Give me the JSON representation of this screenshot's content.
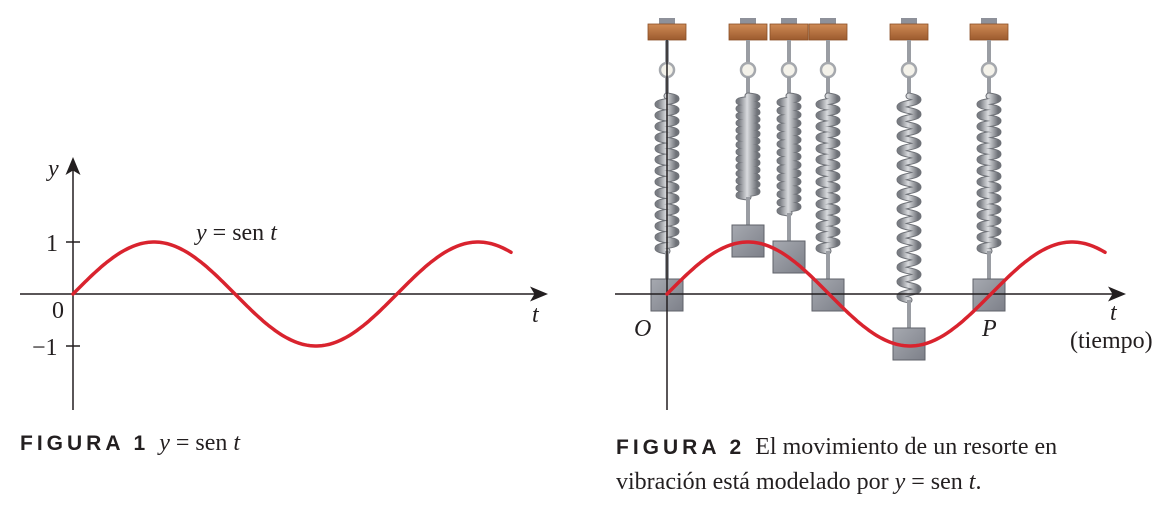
{
  "figure1": {
    "y_axis_label": "y",
    "x_axis_label": "t",
    "tick_one": "1",
    "tick_zero": "0",
    "tick_minus_one": "−1",
    "curve_label_var": "y",
    "curve_label_expr": " = sen ",
    "curve_label_t": "t",
    "caption_tag": "FIGURA 1",
    "caption_var": "y",
    "caption_text": " = sen ",
    "caption_t": "t"
  },
  "figure2": {
    "x_axis_label": "t",
    "x_axis_sublabel": "(tiempo)",
    "origin_label": "O",
    "point_label": "P",
    "caption_tag": "FIGURA 2",
    "caption_line1": "El movimiento de un resorte en",
    "caption_line2_pre": "vibración está modelado por ",
    "caption_var": "y",
    "caption_text": " = sen ",
    "caption_t": "t",
    "caption_end": "."
  },
  "colors": {
    "curve": "#d9232e",
    "axis": "#231f20",
    "spring": "#a8aaae",
    "mass": "#8e919a",
    "wood": "#b86f3e"
  },
  "chart_data": [
    {
      "type": "line",
      "function": "y = sen t",
      "x_range": [
        0,
        7
      ],
      "y_range": [
        -1,
        1
      ],
      "y_ticks": [
        -1,
        0,
        1
      ],
      "series": [
        {
          "values_desc": "sine wave, one and a half periods shown"
        }
      ]
    },
    {
      "type": "line",
      "function": "y = sen t",
      "x_range": [
        0,
        7
      ],
      "y_range": [
        -1,
        1
      ],
      "spring_mass_values": [
        0,
        1,
        0.7,
        0,
        -1,
        0
      ]
    }
  ]
}
